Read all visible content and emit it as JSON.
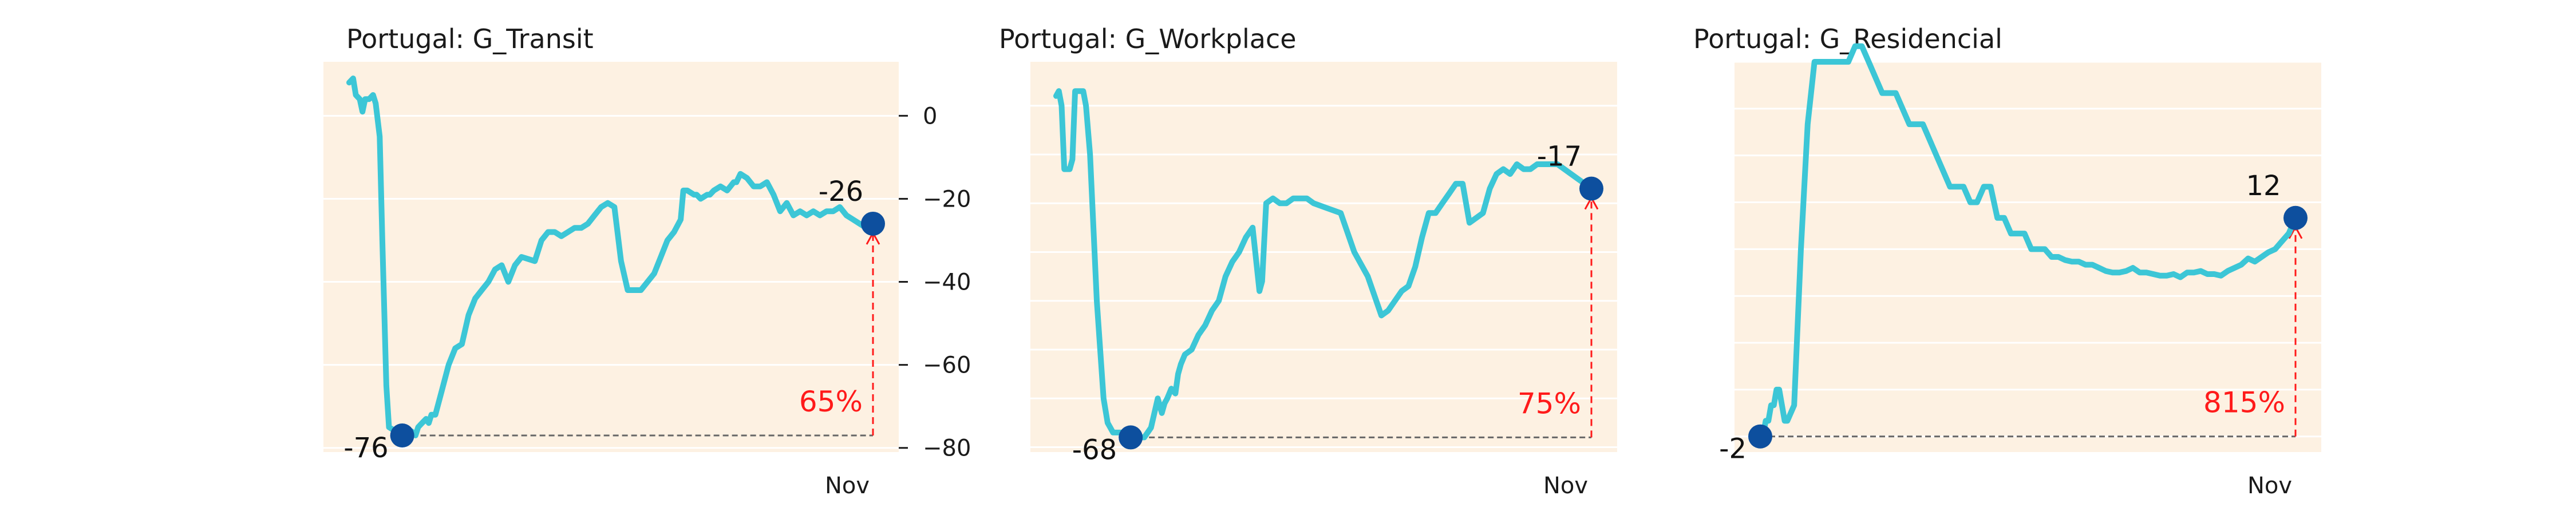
{
  "figure": {
    "colors": {
      "background": "#fdf1e2",
      "line": "#3cc6d6",
      "marker": "#0d4f9e",
      "arrow": "#ff1a1a",
      "baseline": "#666666",
      "grid": "#ffffff"
    }
  },
  "chart_data": [
    {
      "type": "line",
      "title": "Portugal: G_Transit",
      "x_tick_label": "Nov",
      "y_axis": "right",
      "ylim": [
        -81,
        13
      ],
      "y_ticks": [
        0,
        -20,
        -40,
        -60,
        -80
      ],
      "y_tick_labels": [
        "0",
        "−20",
        "−40",
        "−60",
        "−80"
      ],
      "grid": true,
      "x": [
        0,
        3,
        5,
        8,
        10,
        12,
        15,
        18,
        20,
        23,
        25,
        28,
        30,
        35,
        40,
        45,
        47,
        50,
        52,
        55,
        58,
        60,
        62,
        65,
        70,
        75,
        80,
        85,
        90,
        95,
        100,
        105,
        110,
        115,
        120,
        125,
        130,
        140,
        145,
        150,
        155,
        160,
        165,
        170,
        175,
        180,
        185,
        190,
        195,
        200,
        205,
        210,
        215,
        220,
        225,
        230,
        235,
        240,
        245,
        250,
        252,
        255,
        260,
        262,
        265,
        270,
        272,
        275,
        280,
        285,
        290,
        292,
        295,
        300,
        305,
        310,
        315,
        320,
        325,
        330,
        335,
        340,
        345,
        350,
        355,
        360,
        365,
        370,
        375,
        380,
        385,
        390,
        395
      ],
      "values": [
        8,
        9,
        5,
        4,
        1,
        4,
        4,
        5,
        3,
        -5,
        -30,
        -65,
        -75,
        -76,
        -77,
        -76,
        -76,
        -77,
        -75,
        -74,
        -73,
        -74,
        -72,
        -72,
        -66,
        -60,
        -56,
        -55,
        -48,
        -44,
        -42,
        -40,
        -37,
        -36,
        -40,
        -36,
        -34,
        -35,
        -30,
        -28,
        -28,
        -29,
        -28,
        -27,
        -27,
        -26,
        -24,
        -22,
        -21,
        -22,
        -35,
        -42,
        -42,
        -42,
        -40,
        -38,
        -34,
        -30,
        -28,
        -25,
        -18,
        -18,
        -19,
        -19,
        -20,
        -19,
        -19,
        -18,
        -17,
        -18,
        -16,
        -16,
        -14,
        -15,
        -17,
        -17,
        -16,
        -19,
        -23,
        -21,
        -24,
        -23,
        -24,
        -23,
        -24,
        -23,
        -23,
        -22,
        -24,
        -25,
        -26,
        -27,
        -26
      ],
      "start_label": "-76",
      "end_label": "-26",
      "change_label": "65%"
    },
    {
      "type": "line",
      "title": "Portugal: G_Workplace",
      "x_tick_label": "Nov",
      "ylim": [
        -71,
        9
      ],
      "y_gridlines": [
        0,
        -10,
        -20,
        -30,
        -40,
        -50,
        -60,
        -70
      ],
      "grid": true,
      "x": [
        0,
        2,
        4,
        6,
        8,
        10,
        12,
        14,
        16,
        18,
        20,
        22,
        25,
        30,
        35,
        38,
        40,
        42,
        45,
        50,
        55,
        60,
        65,
        70,
        75,
        78,
        80,
        82,
        85,
        88,
        90,
        92,
        95,
        100,
        105,
        110,
        115,
        120,
        125,
        130,
        135,
        140,
        145,
        150,
        152,
        155,
        160,
        165,
        170,
        175,
        180,
        185,
        190,
        200,
        210,
        220,
        230,
        240,
        245,
        250,
        255,
        260,
        265,
        270,
        275,
        280,
        285,
        290,
        295,
        300,
        305,
        310,
        315,
        320,
        325,
        330,
        335,
        340,
        345,
        350,
        355,
        360,
        365,
        370,
        375,
        380,
        385,
        390,
        395
      ],
      "values": [
        2,
        3,
        0,
        -13,
        -13,
        -13,
        -11,
        3,
        3,
        3,
        3,
        0,
        -10,
        -40,
        -60,
        -65,
        -66,
        -67,
        -67,
        -67,
        -68,
        -68,
        -68,
        -66,
        -60,
        -63,
        -61,
        -60,
        -58,
        -59,
        -55,
        -53,
        -51,
        -50,
        -47,
        -45,
        -42,
        -40,
        -35,
        -32,
        -30,
        -27,
        -25,
        -38,
        -36,
        -20,
        -19,
        -20,
        -20,
        -19,
        -19,
        -19,
        -20,
        -21,
        -22,
        -30,
        -35,
        -43,
        -42,
        -40,
        -38,
        -37,
        -33,
        -27,
        -22,
        -22,
        -20,
        -18,
        -16,
        -16,
        -24,
        -23,
        -22,
        -17,
        -14,
        -13,
        -14,
        -12,
        -13,
        -13,
        -12,
        -12,
        -12,
        -12,
        -13,
        -14,
        -15,
        -16,
        -17
      ],
      "start_label": "-68",
      "end_label": "-17",
      "change_label": "75%"
    },
    {
      "type": "line",
      "title": "Portugal: G_Residencial",
      "x_tick_label": "Nov",
      "ylim": [
        -3,
        22
      ],
      "y_gridlines": [
        -2,
        1,
        4,
        7,
        10,
        13,
        16,
        19,
        22
      ],
      "grid": true,
      "x": [
        0,
        2,
        4,
        6,
        8,
        10,
        12,
        14,
        16,
        18,
        20,
        25,
        30,
        35,
        40,
        45,
        50,
        55,
        60,
        65,
        70,
        75,
        80,
        85,
        90,
        95,
        100,
        105,
        110,
        115,
        120,
        125,
        130,
        135,
        140,
        145,
        150,
        155,
        160,
        165,
        170,
        175,
        180,
        185,
        190,
        195,
        200,
        205,
        210,
        215,
        220,
        225,
        230,
        235,
        240,
        245,
        250,
        255,
        260,
        265,
        270,
        275,
        280,
        285,
        290,
        295,
        300,
        305,
        310,
        315,
        320,
        325,
        330,
        335,
        340,
        345,
        350,
        355,
        360,
        365,
        370,
        375,
        380,
        385,
        390,
        395
      ],
      "values": [
        -2,
        -2,
        -1,
        -1,
        0,
        0,
        1,
        1,
        0,
        -1,
        -1,
        0,
        10,
        18,
        22,
        22,
        22,
        22,
        22,
        22,
        23,
        23,
        22,
        21,
        20,
        20,
        20,
        19,
        18,
        18,
        18,
        17,
        16,
        15,
        14,
        14,
        14,
        13,
        13,
        14,
        14,
        12,
        12,
        11,
        11,
        11,
        10,
        10,
        10,
        9.5,
        9.5,
        9.3,
        9.2,
        9.2,
        9,
        9,
        8.8,
        8.6,
        8.5,
        8.5,
        8.6,
        8.8,
        8.5,
        8.5,
        8.4,
        8.3,
        8.3,
        8.4,
        8.2,
        8.5,
        8.5,
        8.6,
        8.4,
        8.4,
        8.3,
        8.6,
        8.8,
        9,
        9.4,
        9.2,
        9.5,
        9.8,
        10,
        10.5,
        11,
        12
      ],
      "start_label": "-2",
      "end_label": "12",
      "change_label": "815%"
    }
  ]
}
